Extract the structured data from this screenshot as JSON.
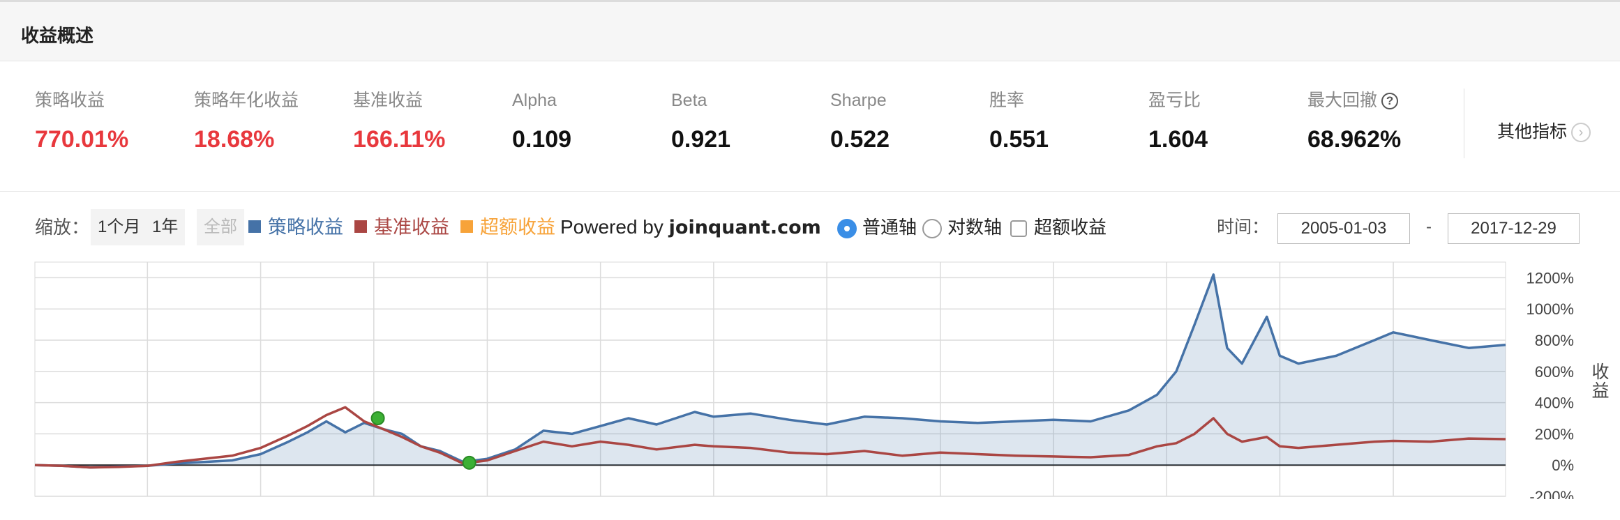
{
  "header": {
    "title": "收益概述"
  },
  "metrics": [
    {
      "label": "策略收益",
      "value": "770.01%",
      "highlight": true
    },
    {
      "label": "策略年化收益",
      "value": "18.68%",
      "highlight": true
    },
    {
      "label": "基准收益",
      "value": "166.11%",
      "highlight": true
    },
    {
      "label": "Alpha",
      "value": "0.109",
      "highlight": false
    },
    {
      "label": "Beta",
      "value": "0.921",
      "highlight": false
    },
    {
      "label": "Sharpe",
      "value": "0.522",
      "highlight": false
    },
    {
      "label": "胜率",
      "value": "0.551",
      "highlight": false
    },
    {
      "label": "盈亏比",
      "value": "1.604",
      "highlight": false
    },
    {
      "label": "最大回撤",
      "value": "68.962%",
      "highlight": false,
      "help_icon": "question-icon"
    }
  ],
  "other_metrics_label": "其他指标",
  "toolbar": {
    "zoom_label": "缩放：",
    "zoom_buttons": [
      "1个月",
      "1年",
      "全部"
    ],
    "legend": [
      {
        "label": "策略收益",
        "color": "#4572a7"
      },
      {
        "label": "基准收益",
        "color": "#aa4643"
      },
      {
        "label": "超额收益",
        "color": "#f7a339"
      }
    ],
    "credit_prefix": "Powered by ",
    "credit_site": "joinquant.com",
    "axis_options": [
      {
        "label": "普通轴",
        "selected": true
      },
      {
        "label": "对数轴",
        "selected": false
      }
    ],
    "excess_checkbox": {
      "label": "超额收益",
      "checked": false
    },
    "time_label": "时间：",
    "start_date": "2005-01-03",
    "date_separator": "-",
    "end_date": "2017-12-29"
  },
  "colors": {
    "strategy": "#4572a7",
    "benchmark": "#aa4643",
    "excess": "#f7a339",
    "highlight_red": "#e8383d",
    "drawdown_marker": "#3cb034"
  },
  "chart_data": {
    "type": "line",
    "x_range": [
      "2005-01-03",
      "2017-12-29"
    ],
    "ylabel": "收益",
    "ylim": [
      -200,
      1300
    ],
    "y_ticks": [
      -200,
      0,
      200,
      400,
      600,
      800,
      1000,
      1200
    ],
    "y_tick_labels": [
      "-200%",
      "0%",
      "200%",
      "400%",
      "600%",
      "800%",
      "1000%",
      "1200%"
    ],
    "y_axis_side": "right",
    "grid": true,
    "legend_position": "top",
    "series": [
      {
        "name": "策略收益",
        "color": "#4572a7",
        "area": true,
        "points": [
          [
            "2005-01-03",
            0
          ],
          [
            "2005-04-01",
            -5
          ],
          [
            "2005-07-01",
            -15
          ],
          [
            "2005-10-01",
            -10
          ],
          [
            "2006-01-01",
            -5
          ],
          [
            "2006-04-01",
            10
          ],
          [
            "2006-07-01",
            20
          ],
          [
            "2006-10-01",
            30
          ],
          [
            "2007-01-01",
            70
          ],
          [
            "2007-04-01",
            150
          ],
          [
            "2007-06-01",
            210
          ],
          [
            "2007-08-01",
            280
          ],
          [
            "2007-10-01",
            210
          ],
          [
            "2007-12-01",
            270
          ],
          [
            "2008-02-01",
            230
          ],
          [
            "2008-04-01",
            200
          ],
          [
            "2008-06-01",
            120
          ],
          [
            "2008-08-01",
            90
          ],
          [
            "2008-10-15",
            20
          ],
          [
            "2009-01-01",
            40
          ],
          [
            "2009-04-01",
            100
          ],
          [
            "2009-07-01",
            220
          ],
          [
            "2009-10-01",
            200
          ],
          [
            "2010-01-01",
            250
          ],
          [
            "2010-04-01",
            300
          ],
          [
            "2010-07-01",
            260
          ],
          [
            "2010-11-01",
            340
          ],
          [
            "2011-01-01",
            310
          ],
          [
            "2011-05-01",
            330
          ],
          [
            "2011-09-01",
            290
          ],
          [
            "2012-01-01",
            260
          ],
          [
            "2012-05-01",
            310
          ],
          [
            "2012-09-01",
            300
          ],
          [
            "2013-01-01",
            280
          ],
          [
            "2013-05-01",
            270
          ],
          [
            "2013-09-01",
            280
          ],
          [
            "2014-01-01",
            290
          ],
          [
            "2014-05-01",
            280
          ],
          [
            "2014-09-01",
            350
          ],
          [
            "2014-12-01",
            450
          ],
          [
            "2015-02-01",
            600
          ],
          [
            "2015-04-01",
            900
          ],
          [
            "2015-06-01",
            1220
          ],
          [
            "2015-07-15",
            750
          ],
          [
            "2015-09-01",
            650
          ],
          [
            "2015-11-20",
            950
          ],
          [
            "2016-01-01",
            700
          ],
          [
            "2016-03-01",
            650
          ],
          [
            "2016-07-01",
            700
          ],
          [
            "2016-11-01",
            800
          ],
          [
            "2017-01-01",
            850
          ],
          [
            "2017-05-01",
            800
          ],
          [
            "2017-09-01",
            750
          ],
          [
            "2017-12-29",
            770
          ]
        ]
      },
      {
        "name": "基准收益",
        "color": "#aa4643",
        "area": false,
        "points": [
          [
            "2005-01-03",
            0
          ],
          [
            "2005-04-01",
            -5
          ],
          [
            "2005-07-01",
            -15
          ],
          [
            "2005-10-01",
            -12
          ],
          [
            "2006-01-01",
            -5
          ],
          [
            "2006-04-01",
            20
          ],
          [
            "2006-07-01",
            40
          ],
          [
            "2006-10-01",
            60
          ],
          [
            "2007-01-01",
            110
          ],
          [
            "2007-04-01",
            190
          ],
          [
            "2007-06-01",
            250
          ],
          [
            "2007-08-01",
            320
          ],
          [
            "2007-10-01",
            370
          ],
          [
            "2007-12-01",
            280
          ],
          [
            "2008-02-01",
            230
          ],
          [
            "2008-04-01",
            180
          ],
          [
            "2008-06-01",
            120
          ],
          [
            "2008-08-01",
            80
          ],
          [
            "2008-10-15",
            10
          ],
          [
            "2009-01-01",
            30
          ],
          [
            "2009-04-01",
            90
          ],
          [
            "2009-07-01",
            150
          ],
          [
            "2009-10-01",
            120
          ],
          [
            "2010-01-01",
            150
          ],
          [
            "2010-04-01",
            130
          ],
          [
            "2010-07-01",
            100
          ],
          [
            "2010-11-01",
            130
          ],
          [
            "2011-01-01",
            120
          ],
          [
            "2011-05-01",
            110
          ],
          [
            "2011-09-01",
            80
          ],
          [
            "2012-01-01",
            70
          ],
          [
            "2012-05-01",
            90
          ],
          [
            "2012-09-01",
            60
          ],
          [
            "2013-01-01",
            80
          ],
          [
            "2013-05-01",
            70
          ],
          [
            "2013-09-01",
            60
          ],
          [
            "2014-01-01",
            55
          ],
          [
            "2014-05-01",
            50
          ],
          [
            "2014-09-01",
            65
          ],
          [
            "2014-12-01",
            120
          ],
          [
            "2015-02-01",
            140
          ],
          [
            "2015-04-01",
            200
          ],
          [
            "2015-06-01",
            300
          ],
          [
            "2015-07-15",
            200
          ],
          [
            "2015-09-01",
            150
          ],
          [
            "2015-11-20",
            180
          ],
          [
            "2016-01-01",
            120
          ],
          [
            "2016-03-01",
            110
          ],
          [
            "2016-07-01",
            130
          ],
          [
            "2016-11-01",
            150
          ],
          [
            "2017-01-01",
            155
          ],
          [
            "2017-05-01",
            150
          ],
          [
            "2017-09-01",
            170
          ],
          [
            "2017-12-29",
            166
          ]
        ]
      }
    ],
    "markers": [
      {
        "name": "max-drawdown-start",
        "x": "2008-01-14",
        "y": 300
      },
      {
        "name": "max-drawdown-end",
        "x": "2008-11-04",
        "y": 15
      }
    ]
  }
}
